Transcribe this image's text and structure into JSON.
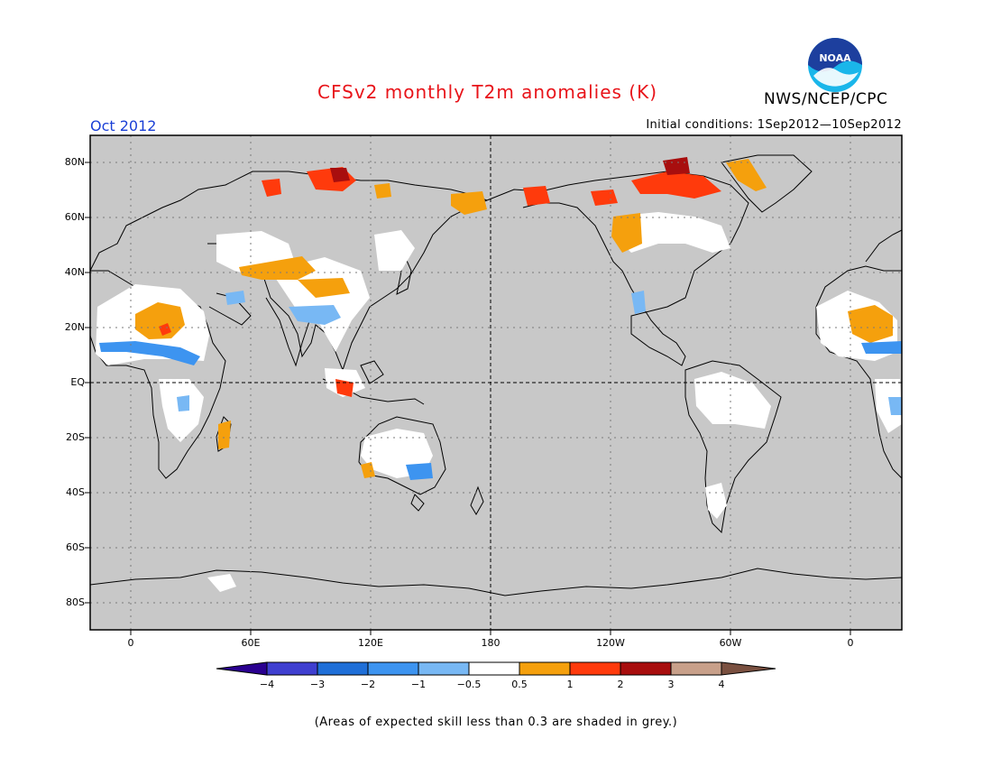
{
  "header": {
    "title": "CFSv2 monthly T2m anomalies (K)",
    "agency": "NWS/NCEP/CPC",
    "logo_text": "NOAA",
    "forecast_month": "Oct 2012",
    "initial_conditions": "Initial conditions: 1Sep2012—10Sep2012"
  },
  "map": {
    "projection": "equirectangular, Pacific-centered",
    "background_color": "#c8c8c8",
    "lat_ticks": [
      "80N",
      "60N",
      "40N",
      "20N",
      "EQ",
      "20S",
      "40S",
      "60S",
      "80S"
    ],
    "lon_ticks": [
      "0",
      "60E",
      "120E",
      "180",
      "120W",
      "60W",
      "0"
    ],
    "reference_lines": [
      "EQ",
      "180"
    ],
    "grid": "dotted"
  },
  "colorbar": {
    "tick_labels": [
      "−4",
      "−3",
      "−2",
      "−1",
      "−0.5",
      "0.5",
      "1",
      "2",
      "3",
      "4"
    ],
    "colors": [
      "#2a0090",
      "#3f3fd0",
      "#1f6fd8",
      "#3d94f0",
      "#78b8f4",
      "#ffffff",
      "#f5a00d",
      "#ff3a0c",
      "#a80e0e",
      "#c8a08a",
      "#7a5040"
    ]
  },
  "footer": {
    "skill_note": "(Areas of expected skill less than 0.3 are shaded in grey.)"
  }
}
